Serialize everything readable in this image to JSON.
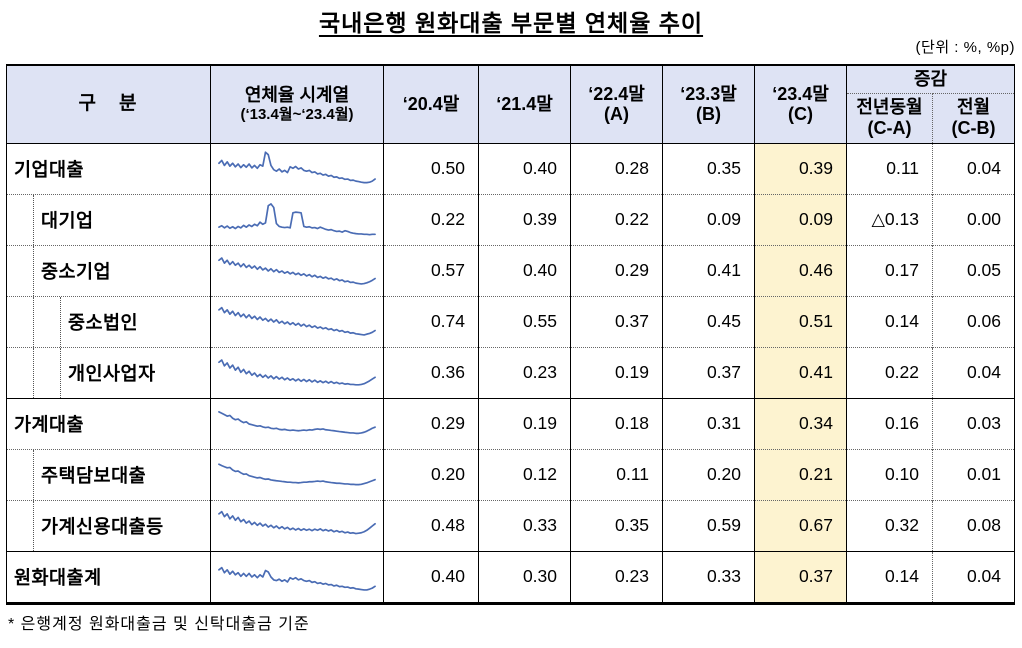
{
  "title": "국내은행 원화대출 부문별 연체율 추이",
  "unit_note": "(단위 : %, %p)",
  "footnote": "* 은행계정 원화대출금 및 신탁대출금 기준",
  "colors": {
    "header_bg": "#dee3f4",
    "highlight_bg": "#fdf3d0",
    "spark_line": "#4a6cb4",
    "border": "#000000"
  },
  "chart_data": {
    "type": "table",
    "title": "국내은행 원화대출 부문별 연체율 추이",
    "unit": "(단위 : %, %p)",
    "spark_color": "#4a6cb4",
    "header": {
      "category": "구　분",
      "series": {
        "line1": "연체율 시계열",
        "line2": "(‘13.4월~‘23.4월)"
      },
      "periods": [
        {
          "line1": "‘20.4말",
          "line2": ""
        },
        {
          "line1": "‘21.4말",
          "line2": ""
        },
        {
          "line1": "‘22.4말",
          "line2": "(A)"
        },
        {
          "line1": "‘23.3말",
          "line2": "(B)"
        },
        {
          "line1": "‘23.4말",
          "line2": "(C)"
        }
      ],
      "change_label": "증감",
      "change_sub": [
        {
          "line1": "전년동월",
          "line2": "(C-A)"
        },
        {
          "line1": "전월",
          "line2": "(C-B)"
        }
      ]
    },
    "rows": [
      {
        "label": "기업대출",
        "level": 0,
        "separator": "none",
        "values": [
          "0.50",
          "0.40",
          "0.28",
          "0.35",
          "0.39",
          "0.11",
          "0.04"
        ],
        "spark": [
          0.66,
          0.74,
          0.6,
          0.7,
          0.58,
          0.66,
          0.56,
          0.64,
          0.54,
          0.62,
          0.55,
          0.64,
          0.53,
          0.6,
          0.52,
          0.62,
          0.58,
          0.97,
          0.9,
          0.6,
          0.48,
          0.44,
          0.5,
          0.42,
          0.46,
          0.4,
          0.56,
          0.52,
          0.57,
          0.5,
          0.53,
          0.46,
          0.44,
          0.46,
          0.4,
          0.42,
          0.36,
          0.38,
          0.33,
          0.35,
          0.3,
          0.32,
          0.27,
          0.28,
          0.24,
          0.25,
          0.21,
          0.22,
          0.18,
          0.19,
          0.16,
          0.15,
          0.13,
          0.12,
          0.12,
          0.13,
          0.16,
          0.22
        ]
      },
      {
        "label": "대기업",
        "level": 1,
        "separator": "dotted",
        "values": [
          "0.22",
          "0.39",
          "0.22",
          "0.09",
          "0.09",
          "△0.13",
          "0.00"
        ],
        "spark": [
          0.3,
          0.34,
          0.28,
          0.33,
          0.27,
          0.31,
          0.26,
          0.32,
          0.28,
          0.35,
          0.3,
          0.36,
          0.32,
          0.38,
          0.34,
          0.44,
          0.38,
          0.42,
          0.9,
          0.95,
          0.85,
          0.4,
          0.32,
          0.3,
          0.29,
          0.3,
          0.28,
          0.7,
          0.72,
          0.71,
          0.7,
          0.32,
          0.3,
          0.31,
          0.28,
          0.29,
          0.26,
          0.3,
          0.27,
          0.24,
          0.22,
          0.23,
          0.2,
          0.18,
          0.19,
          0.16,
          0.2,
          0.18,
          0.15,
          0.13,
          0.12,
          0.11,
          0.11,
          0.1,
          0.1,
          0.09,
          0.1,
          0.1
        ]
      },
      {
        "label": "중소기업",
        "level": 1,
        "separator": "dotted",
        "values": [
          "0.57",
          "0.40",
          "0.29",
          "0.41",
          "0.46",
          "0.17",
          "0.05"
        ],
        "spark": [
          0.8,
          0.86,
          0.72,
          0.8,
          0.68,
          0.76,
          0.66,
          0.72,
          0.62,
          0.7,
          0.6,
          0.66,
          0.58,
          0.64,
          0.55,
          0.62,
          0.53,
          0.58,
          0.5,
          0.56,
          0.48,
          0.54,
          0.46,
          0.5,
          0.44,
          0.48,
          0.42,
          0.46,
          0.4,
          0.44,
          0.38,
          0.42,
          0.36,
          0.4,
          0.34,
          0.38,
          0.32,
          0.35,
          0.3,
          0.33,
          0.28,
          0.3,
          0.25,
          0.28,
          0.23,
          0.25,
          0.2,
          0.22,
          0.18,
          0.19,
          0.16,
          0.15,
          0.14,
          0.15,
          0.17,
          0.2,
          0.24,
          0.29
        ]
      },
      {
        "label": "중소법인",
        "level": 2,
        "separator": "dotted",
        "values": [
          "0.74",
          "0.55",
          "0.37",
          "0.45",
          "0.51",
          "0.14",
          "0.06"
        ],
        "spark": [
          0.84,
          0.9,
          0.76,
          0.84,
          0.72,
          0.8,
          0.68,
          0.76,
          0.65,
          0.72,
          0.62,
          0.7,
          0.6,
          0.66,
          0.57,
          0.64,
          0.55,
          0.6,
          0.52,
          0.58,
          0.5,
          0.56,
          0.47,
          0.52,
          0.45,
          0.5,
          0.43,
          0.48,
          0.41,
          0.46,
          0.39,
          0.44,
          0.37,
          0.41,
          0.35,
          0.39,
          0.33,
          0.36,
          0.31,
          0.34,
          0.29,
          0.31,
          0.26,
          0.29,
          0.24,
          0.26,
          0.21,
          0.23,
          0.19,
          0.2,
          0.17,
          0.16,
          0.15,
          0.14,
          0.16,
          0.18,
          0.21,
          0.26
        ]
      },
      {
        "label": "개인사업자",
        "level": 2,
        "separator": "dotted",
        "values": [
          "0.36",
          "0.23",
          "0.19",
          "0.37",
          "0.41",
          "0.22",
          "0.04"
        ],
        "spark": [
          0.8,
          0.86,
          0.7,
          0.78,
          0.64,
          0.72,
          0.58,
          0.66,
          0.52,
          0.6,
          0.48,
          0.55,
          0.44,
          0.5,
          0.4,
          0.46,
          0.38,
          0.44,
          0.36,
          0.42,
          0.34,
          0.4,
          0.33,
          0.38,
          0.31,
          0.36,
          0.3,
          0.34,
          0.28,
          0.33,
          0.27,
          0.32,
          0.26,
          0.31,
          0.25,
          0.3,
          0.24,
          0.28,
          0.23,
          0.27,
          0.22,
          0.26,
          0.21,
          0.24,
          0.2,
          0.22,
          0.19,
          0.2,
          0.18,
          0.18,
          0.17,
          0.17,
          0.18,
          0.2,
          0.24,
          0.28,
          0.33,
          0.38
        ]
      },
      {
        "label": "가계대출",
        "level": 0,
        "separator": "solid",
        "values": [
          "0.29",
          "0.19",
          "0.18",
          "0.31",
          "0.34",
          "0.16",
          "0.03"
        ],
        "spark": [
          0.84,
          0.8,
          0.76,
          0.72,
          0.74,
          0.66,
          0.62,
          0.64,
          0.58,
          0.54,
          0.56,
          0.5,
          0.48,
          0.46,
          0.44,
          0.45,
          0.42,
          0.4,
          0.41,
          0.38,
          0.37,
          0.38,
          0.35,
          0.34,
          0.35,
          0.33,
          0.32,
          0.33,
          0.32,
          0.31,
          0.32,
          0.33,
          0.32,
          0.34,
          0.33,
          0.35,
          0.36,
          0.35,
          0.36,
          0.34,
          0.33,
          0.32,
          0.31,
          0.3,
          0.29,
          0.28,
          0.27,
          0.26,
          0.25,
          0.25,
          0.24,
          0.24,
          0.25,
          0.27,
          0.3,
          0.34,
          0.38,
          0.41
        ]
      },
      {
        "label": "주택담보대출",
        "level": 1,
        "separator": "dotted",
        "values": [
          "0.20",
          "0.12",
          "0.11",
          "0.20",
          "0.21",
          "0.10",
          "0.01"
        ],
        "spark": [
          0.8,
          0.76,
          0.73,
          0.7,
          0.71,
          0.64,
          0.6,
          0.61,
          0.56,
          0.52,
          0.53,
          0.48,
          0.46,
          0.44,
          0.42,
          0.43,
          0.4,
          0.38,
          0.39,
          0.36,
          0.35,
          0.34,
          0.33,
          0.32,
          0.31,
          0.3,
          0.3,
          0.29,
          0.29,
          0.28,
          0.29,
          0.3,
          0.3,
          0.31,
          0.31,
          0.32,
          0.33,
          0.32,
          0.33,
          0.31,
          0.3,
          0.29,
          0.28,
          0.27,
          0.27,
          0.26,
          0.25,
          0.25,
          0.24,
          0.24,
          0.23,
          0.23,
          0.24,
          0.26,
          0.28,
          0.31,
          0.34,
          0.37
        ]
      },
      {
        "label": "가계신용대출등",
        "level": 1,
        "separator": "dotted",
        "values": [
          "0.48",
          "0.33",
          "0.35",
          "0.59",
          "0.67",
          "0.32",
          "0.08"
        ],
        "spark": [
          0.84,
          0.9,
          0.76,
          0.84,
          0.7,
          0.78,
          0.66,
          0.74,
          0.62,
          0.68,
          0.58,
          0.64,
          0.54,
          0.6,
          0.52,
          0.58,
          0.5,
          0.55,
          0.47,
          0.52,
          0.45,
          0.5,
          0.43,
          0.48,
          0.42,
          0.46,
          0.4,
          0.44,
          0.39,
          0.43,
          0.38,
          0.42,
          0.38,
          0.41,
          0.37,
          0.41,
          0.38,
          0.42,
          0.37,
          0.4,
          0.36,
          0.39,
          0.34,
          0.37,
          0.33,
          0.35,
          0.31,
          0.33,
          0.3,
          0.31,
          0.29,
          0.3,
          0.31,
          0.34,
          0.38,
          0.44,
          0.5,
          0.56
        ]
      },
      {
        "label": "원화대출계",
        "level": 0,
        "separator": "solid",
        "values": [
          "0.40",
          "0.30",
          "0.23",
          "0.33",
          "0.37",
          "0.14",
          "0.04"
        ],
        "spark": [
          0.7,
          0.76,
          0.62,
          0.7,
          0.58,
          0.66,
          0.56,
          0.62,
          0.52,
          0.6,
          0.52,
          0.6,
          0.5,
          0.56,
          0.48,
          0.56,
          0.5,
          0.68,
          0.64,
          0.5,
          0.42,
          0.4,
          0.44,
          0.38,
          0.42,
          0.36,
          0.48,
          0.44,
          0.48,
          0.42,
          0.45,
          0.4,
          0.38,
          0.4,
          0.35,
          0.37,
          0.32,
          0.34,
          0.3,
          0.32,
          0.28,
          0.29,
          0.25,
          0.27,
          0.23,
          0.24,
          0.21,
          0.22,
          0.19,
          0.2,
          0.17,
          0.16,
          0.15,
          0.14,
          0.14,
          0.16,
          0.19,
          0.24
        ]
      }
    ]
  }
}
